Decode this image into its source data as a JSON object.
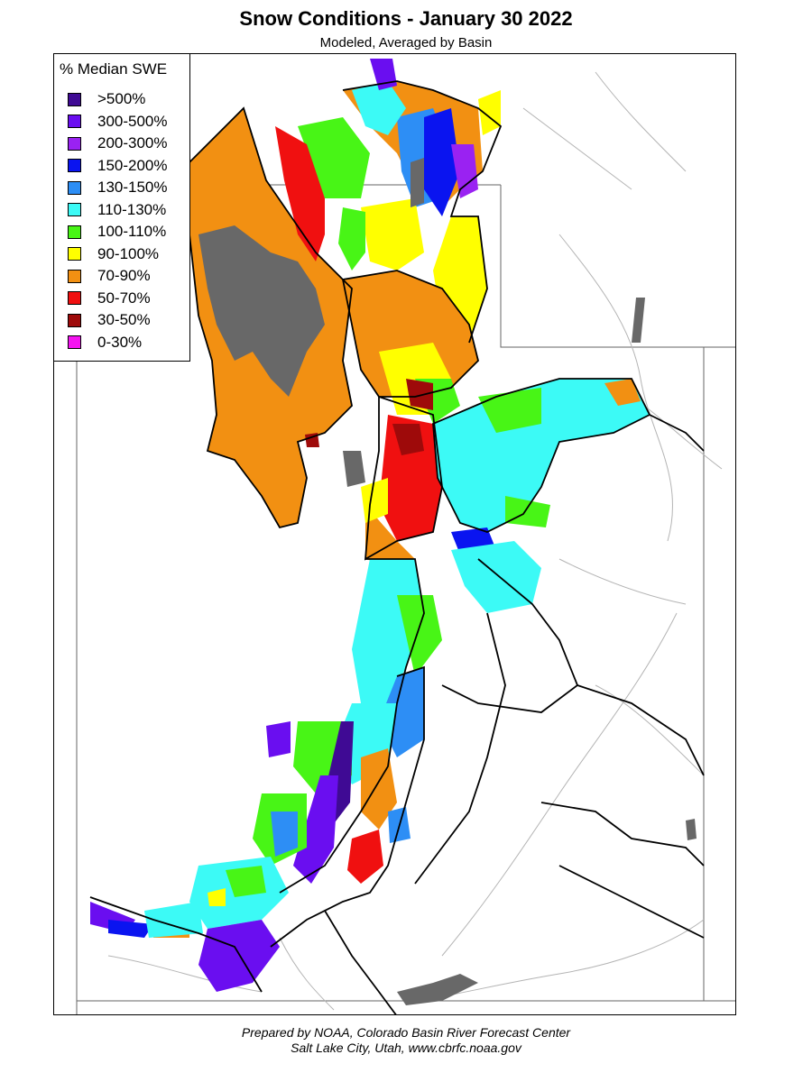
{
  "header": {
    "title": "Snow Conditions - January 30 2022",
    "subtitle": "Modeled, Averaged by Basin"
  },
  "legend": {
    "title": "% Median SWE",
    "items": [
      {
        "label": ">500%",
        "color": "#3f0a94"
      },
      {
        "label": "300-500%",
        "color": "#6a0ef0"
      },
      {
        "label": "200-300%",
        "color": "#9a22f2"
      },
      {
        "label": "150-200%",
        "color": "#0a14f0"
      },
      {
        "label": "130-150%",
        "color": "#2d8ef5"
      },
      {
        "label": "110-130%",
        "color": "#3cfaf6"
      },
      {
        "label": "100-110%",
        "color": "#48f516"
      },
      {
        "label": "90-100%",
        "color": "#ffff00"
      },
      {
        "label": "70-90%",
        "color": "#f29012"
      },
      {
        "label": "50-70%",
        "color": "#f01010"
      },
      {
        "label": "30-50%",
        "color": "#9e0a0a"
      },
      {
        "label": "0-30%",
        "color": "#f414f0"
      }
    ]
  },
  "map": {
    "no_data_color": "#ffffff",
    "lake_color": "#686868",
    "state_line_color": "#666666",
    "river_color": "#b4b4b4",
    "basin_outline_color": "#000000"
  },
  "footer": {
    "line1": "Prepared by NOAA, Colorado Basin River Forecast Center",
    "line2": "Salt Lake City, Utah, www.cbrfc.noaa.gov"
  }
}
